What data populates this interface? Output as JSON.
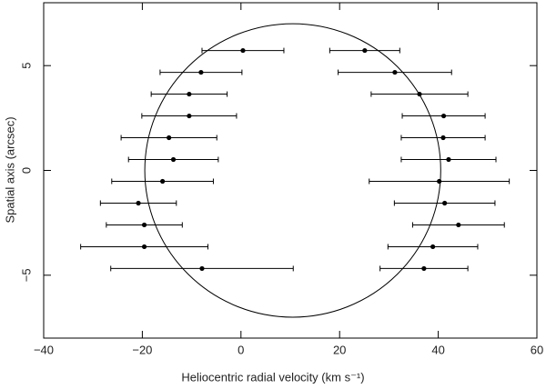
{
  "chart_data": {
    "type": "errorbar",
    "xlabel": "Heliocentric radial velocity (km s⁻¹)",
    "ylabel": "Spatial axis (arcsec)",
    "x": [
      0.4,
      -8.1,
      -10.5,
      -10.5,
      -14.6,
      -13.7,
      -15.9,
      -20.8,
      -19.6,
      -19.6,
      -7.9,
      25.1,
      31.2,
      36.2,
      41.1,
      41.0,
      42.1,
      40.2,
      41.3,
      44.1,
      38.9,
      37.1
    ],
    "y": [
      5.72,
      4.68,
      3.64,
      2.6,
      1.56,
      0.52,
      -0.52,
      -1.56,
      -2.6,
      -3.64,
      -4.68,
      5.72,
      4.68,
      3.64,
      2.6,
      1.56,
      0.52,
      -0.52,
      -1.56,
      -2.6,
      -3.64,
      -4.68
    ],
    "xerr": [
      8.3,
      8.3,
      7.7,
      9.6,
      9.7,
      9.1,
      10.3,
      7.7,
      7.7,
      12.9,
      18.5,
      7.1,
      11.5,
      9.8,
      8.4,
      8.5,
      9.6,
      14.2,
      10.2,
      9.3,
      9.1,
      8.9
    ],
    "color": "#000000",
    "ellipse": {
      "center": [
        10.5,
        0
      ],
      "radii": [
        30,
        7
      ]
    },
    "xlim": [
      -40,
      60
    ],
    "ylim": [
      -8,
      8
    ],
    "xticks": [
      {
        "value": -40,
        "label": "−40"
      },
      {
        "value": -20,
        "label": "−20"
      },
      0,
      20,
      40,
      60
    ],
    "yticks": [
      {
        "value": -5,
        "label": "−5"
      },
      0,
      5
    ]
  }
}
